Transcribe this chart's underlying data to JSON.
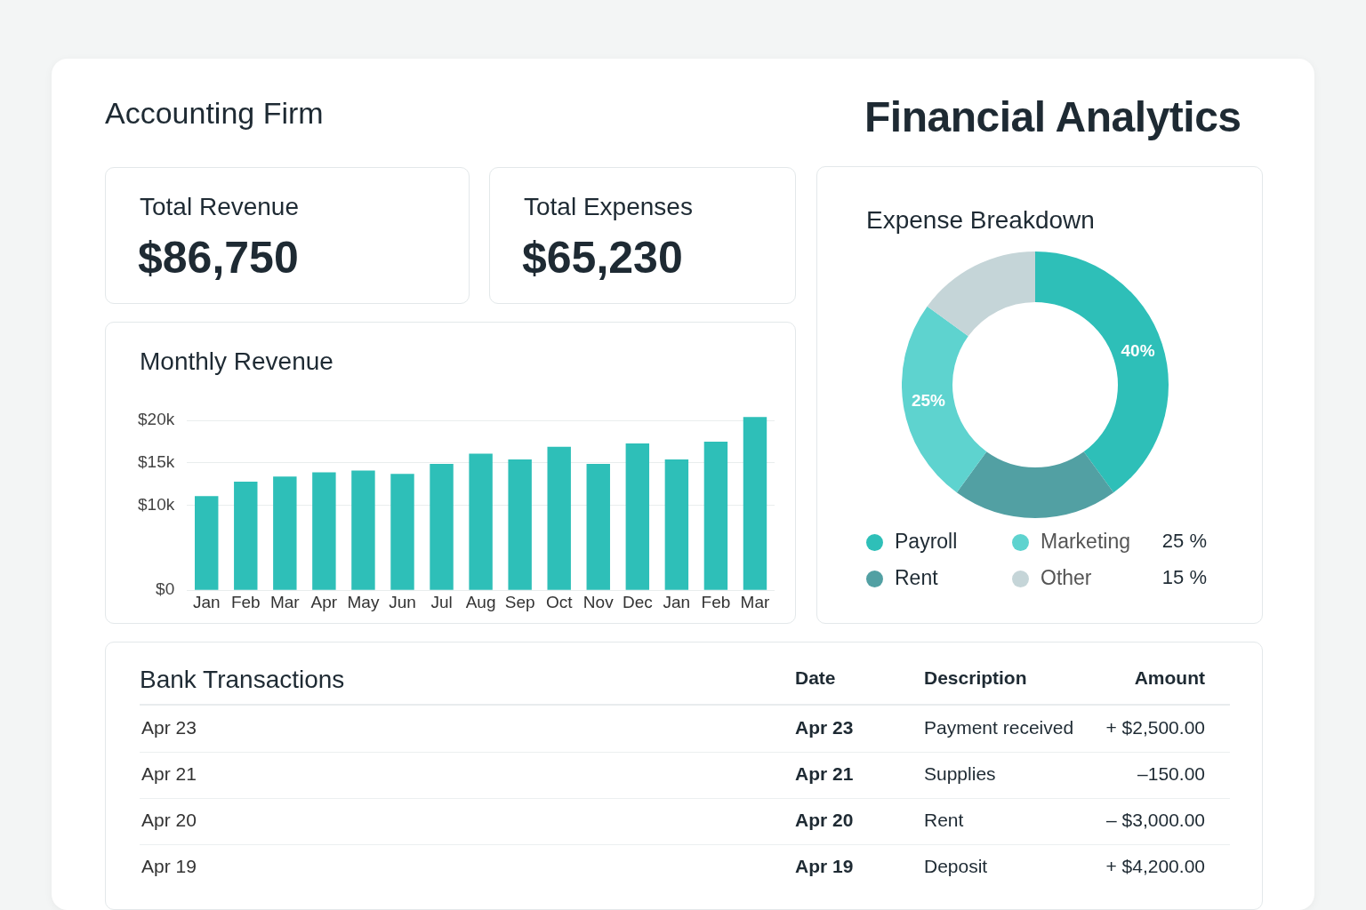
{
  "chart_data": [
    {
      "type": "other",
      "title": "Financial Analytics",
      "subtitle": "Accounting Firm"
    },
    {
      "type": "other",
      "title": "Total Revenue",
      "annotations": [
        "$86,750"
      ]
    },
    {
      "type": "other",
      "title": "Total Expenses",
      "annotations": [
        "$65,230"
      ]
    },
    {
      "type": "bar",
      "title": "Monthly Revenue",
      "categories": [
        "Jan",
        "Feb",
        "Mar",
        "Apr",
        "May",
        "Jun",
        "Jul",
        "Aug",
        "Sep",
        "Oct",
        "Nov",
        "Dec",
        "Jan",
        "Feb",
        "Mar"
      ],
      "values": [
        11100,
        12800,
        13400,
        13900,
        14100,
        13700,
        14900,
        16100,
        15400,
        16900,
        14900,
        17300,
        15400,
        17500,
        20400
      ],
      "color": "#2ebfb8",
      "ylim": [
        0,
        20500
      ],
      "yticks": [
        {
          "value": 0,
          "label": "$0"
        },
        {
          "value": 10000,
          "label": "$10k"
        },
        {
          "value": 15000,
          "label": "$15k"
        },
        {
          "value": 20000,
          "label": "$20k"
        }
      ],
      "grid": "y"
    },
    {
      "type": "donut",
      "title": "Expense Breakdown",
      "categories": [
        "Payroll",
        "Rent",
        "Marketing",
        "Other"
      ],
      "values": [
        40,
        20,
        25,
        15
      ],
      "colors": [
        "#2ebfb8",
        "#52a0a3",
        "#5ed3cf",
        "#c5d5d8"
      ],
      "value_labels": [
        "40%",
        null,
        "25%",
        null
      ],
      "legend": "bottom",
      "annotations": [
        "25 %",
        "15 %"
      ]
    },
    {
      "type": "other",
      "title": "Bank Transactions",
      "categories": [
        "Date",
        "Description",
        "Amount"
      ],
      "annotations": [
        "Apr 23",
        "Apr 23",
        "Payment received",
        "+ $2,500.00",
        "Apr 21",
        "Apr 21",
        "Supplies",
        "–150.00",
        "Apr 20",
        "Apr 20",
        "Rent",
        "– $3,000.00",
        "Apr 19",
        "Apr 19",
        "Deposit",
        "+ $4,200.00"
      ]
    }
  ]
}
